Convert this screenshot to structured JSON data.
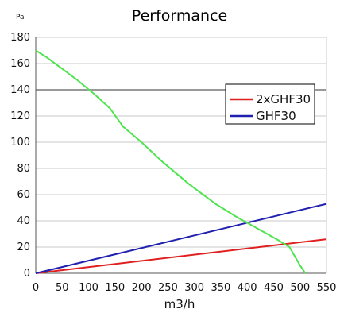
{
  "chart_data": {
    "type": "line",
    "title": "Performance",
    "ylabel": "Pa",
    "xlabel": "m3/h",
    "xlim": [
      0,
      550
    ],
    "ylim": [
      0,
      180
    ],
    "xticks": [
      0,
      50,
      100,
      150,
      200,
      250,
      300,
      350,
      400,
      450,
      500,
      550
    ],
    "yticks": [
      0,
      20,
      40,
      60,
      80,
      100,
      120,
      140,
      160,
      180
    ],
    "grid": true,
    "legend_position": "right",
    "series": [
      {
        "name": "2xGHF30",
        "color": "#e02020",
        "x": [
          0,
          550
        ],
        "y": [
          0,
          26
        ],
        "in_legend": true
      },
      {
        "name": "GHF30",
        "color": "#2020b0",
        "x": [
          0,
          550
        ],
        "y": [
          0,
          53
        ],
        "in_legend": true
      },
      {
        "name": "",
        "color": "#4ee44e",
        "x": [
          0,
          20,
          50,
          80,
          110,
          140,
          165,
          200,
          240,
          290,
          340,
          380,
          420,
          460,
          480,
          490,
          500,
          510
        ],
        "y": [
          170,
          165,
          156,
          147,
          137,
          126,
          112,
          100,
          85,
          68,
          53,
          43,
          34,
          25,
          20,
          13,
          6,
          0
        ],
        "in_legend": false
      }
    ]
  }
}
